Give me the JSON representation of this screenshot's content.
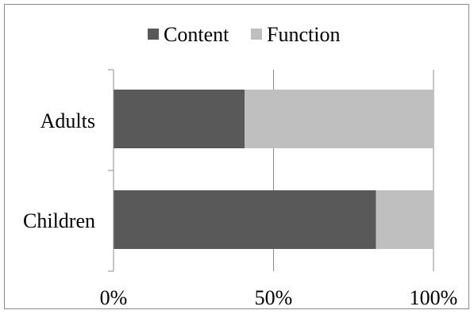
{
  "chart_data": {
    "type": "bar",
    "orientation": "horizontal",
    "stacked": "percent",
    "categories": [
      "Adults",
      "Children"
    ],
    "series": [
      {
        "name": "Content",
        "values": [
          41,
          82
        ],
        "color": "#595959"
      },
      {
        "name": "Function",
        "values": [
          59,
          18
        ],
        "color": "#bfbfbf"
      }
    ],
    "xlim": [
      0,
      100
    ],
    "x_ticks": [
      "0%",
      "50%",
      "100%"
    ],
    "grid": "vertical",
    "legend": "top-center"
  }
}
